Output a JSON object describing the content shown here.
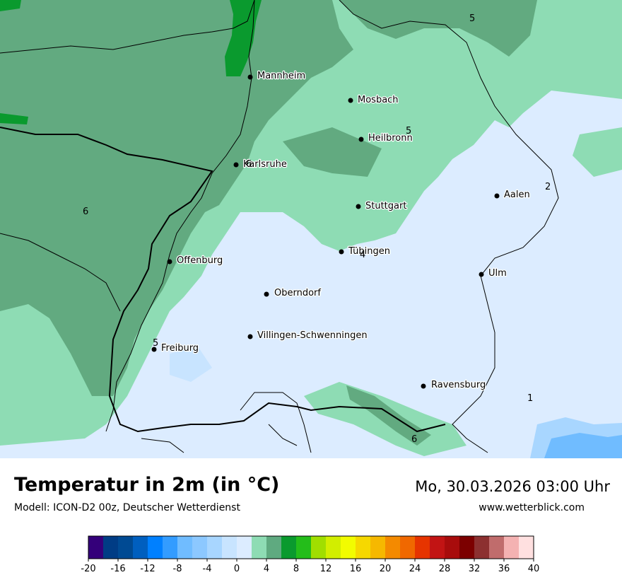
{
  "map": {
    "cities": [
      {
        "name": "Mannheim"
      },
      {
        "name": "Mosbach"
      },
      {
        "name": "Heilbronn"
      },
      {
        "name": "Karlsruhe"
      },
      {
        "name": "Stuttgart"
      },
      {
        "name": "Aalen"
      },
      {
        "name": "Tübingen"
      },
      {
        "name": "Offenburg"
      },
      {
        "name": "Ulm"
      },
      {
        "name": "Oberndorf"
      },
      {
        "name": "Villingen-Schwenningen"
      },
      {
        "name": "Freiburg"
      },
      {
        "name": "Ravensburg"
      }
    ],
    "isoline_labels": [
      "5",
      "5",
      "6",
      "2",
      "6",
      "4",
      "5",
      "1",
      "6"
    ]
  },
  "footer": {
    "title": "Temperatur in 2m (in °C)",
    "model": "Modell: ICON-D2 00z, Deutscher Wetterdienst",
    "datetime": "Mo, 30.03.2026 03:00 Uhr",
    "website": "www.wetterblick.com"
  },
  "legend": {
    "unit": "°C",
    "min": -20,
    "max": 40,
    "step": 2,
    "tick_labels": [
      "-20",
      "-16",
      "-12",
      "-8",
      "-4",
      "0",
      "4",
      "8",
      "12",
      "16",
      "20",
      "24",
      "28",
      "32",
      "36",
      "40"
    ],
    "colors": [
      "#34007a",
      "#003c85",
      "#004a93",
      "#005fbf",
      "#0080ff",
      "#339cff",
      "#70bcff",
      "#8cc8ff",
      "#a8d6ff",
      "#c8e4ff",
      "#dcecff",
      "#8edcb4",
      "#5faa80",
      "#0a9a2e",
      "#24bd1a",
      "#a0de00",
      "#d2ee00",
      "#f2fc00",
      "#f6d800",
      "#f6b800",
      "#f48a00",
      "#f06800",
      "#e63400",
      "#c21414",
      "#a80c0c",
      "#7c0000",
      "#8c3030",
      "#c06c6c",
      "#f4b2b2",
      "#ffe0e0"
    ]
  }
}
